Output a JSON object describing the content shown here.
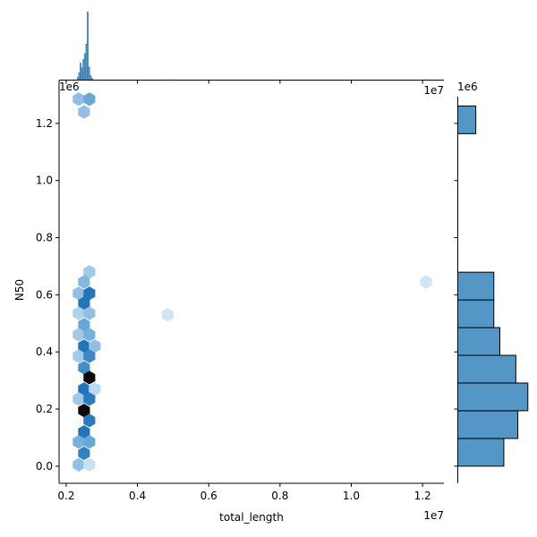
{
  "chart_data": {
    "type": "hexbin-joint",
    "xlabel": "total_length",
    "ylabel": "N50",
    "x_offset_label": "1e7",
    "y_offset_label": "1e6",
    "top_x_offset_label": "1e7",
    "top_x_left_label": "1e6",
    "right_y_offset_label": "1e6",
    "xlim": [
      0.18,
      1.26
    ],
    "ylim": [
      -0.06,
      1.35
    ],
    "x_ticks": [
      0.2,
      0.4,
      0.6,
      0.8,
      1.0,
      1.2
    ],
    "x_tick_labels": [
      "0.2",
      "0.4",
      "0.6",
      "0.8",
      "1.0",
      "1.2"
    ],
    "y_ticks": [
      0.0,
      0.2,
      0.4,
      0.6,
      0.8,
      1.0,
      1.2
    ],
    "y_tick_labels": [
      "0.0",
      "0.2",
      "0.4",
      "0.6",
      "0.8",
      "1.0",
      "1.2"
    ],
    "colors": {
      "hex_light": "#e7f1fa",
      "hex_mid": "#5aa0d5",
      "hex_dark": "#1b6fb5",
      "hex_peak": "#0b0b0b",
      "bar": "#5497c7",
      "bar_stroke": "#000000",
      "spine": "#000000"
    },
    "hexbins": [
      {
        "x": 0.235,
        "y": 1.285,
        "level": 0.3
      },
      {
        "x": 0.265,
        "y": 1.285,
        "level": 0.45
      },
      {
        "x": 0.25,
        "y": 1.24,
        "level": 0.3
      },
      {
        "x": 0.265,
        "y": 0.68,
        "level": 0.25
      },
      {
        "x": 0.25,
        "y": 0.645,
        "level": 0.35
      },
      {
        "x": 0.235,
        "y": 0.605,
        "level": 0.3
      },
      {
        "x": 0.265,
        "y": 0.605,
        "level": 0.85
      },
      {
        "x": 0.25,
        "y": 0.57,
        "level": 0.85
      },
      {
        "x": 0.235,
        "y": 0.535,
        "level": 0.2
      },
      {
        "x": 0.265,
        "y": 0.535,
        "level": 0.3
      },
      {
        "x": 0.25,
        "y": 0.495,
        "level": 0.45
      },
      {
        "x": 0.235,
        "y": 0.46,
        "level": 0.25
      },
      {
        "x": 0.265,
        "y": 0.46,
        "level": 0.4
      },
      {
        "x": 0.25,
        "y": 0.42,
        "level": 0.85
      },
      {
        "x": 0.28,
        "y": 0.42,
        "level": 0.3
      },
      {
        "x": 0.235,
        "y": 0.385,
        "level": 0.25
      },
      {
        "x": 0.265,
        "y": 0.385,
        "level": 0.7
      },
      {
        "x": 0.25,
        "y": 0.345,
        "level": 0.65
      },
      {
        "x": 0.265,
        "y": 0.31,
        "level": 1.0
      },
      {
        "x": 0.25,
        "y": 0.27,
        "level": 0.85
      },
      {
        "x": 0.28,
        "y": 0.27,
        "level": 0.15
      },
      {
        "x": 0.235,
        "y": 0.235,
        "level": 0.25
      },
      {
        "x": 0.265,
        "y": 0.235,
        "level": 0.8
      },
      {
        "x": 0.25,
        "y": 0.195,
        "level": 1.0
      },
      {
        "x": 0.265,
        "y": 0.16,
        "level": 0.8
      },
      {
        "x": 0.25,
        "y": 0.12,
        "level": 0.85
      },
      {
        "x": 0.235,
        "y": 0.085,
        "level": 0.4
      },
      {
        "x": 0.265,
        "y": 0.085,
        "level": 0.45
      },
      {
        "x": 0.25,
        "y": 0.045,
        "level": 0.75
      },
      {
        "x": 0.235,
        "y": 0.005,
        "level": 0.3
      },
      {
        "x": 0.265,
        "y": 0.005,
        "level": 0.1
      },
      {
        "x": 0.485,
        "y": 0.53,
        "level": 0.08
      },
      {
        "x": 1.21,
        "y": 0.645,
        "level": 0.08
      }
    ],
    "right_hist": [
      {
        "y0": 0.0,
        "y1": 0.097,
        "count": 46
      },
      {
        "y0": 0.097,
        "y1": 0.194,
        "count": 60
      },
      {
        "y0": 0.194,
        "y1": 0.291,
        "count": 70
      },
      {
        "y0": 0.291,
        "y1": 0.388,
        "count": 58
      },
      {
        "y0": 0.388,
        "y1": 0.485,
        "count": 42
      },
      {
        "y0": 0.485,
        "y1": 0.582,
        "count": 36
      },
      {
        "y0": 0.582,
        "y1": 0.679,
        "count": 36
      },
      {
        "y0": 1.164,
        "y1": 1.261,
        "count": 18
      }
    ],
    "right_hist_xmax": 72,
    "top_hist": [
      {
        "x0": 0.2305,
        "x1": 0.2345,
        "count": 3
      },
      {
        "x0": 0.2345,
        "x1": 0.2385,
        "count": 8
      },
      {
        "x0": 0.2385,
        "x1": 0.2425,
        "count": 18
      },
      {
        "x0": 0.2425,
        "x1": 0.2465,
        "count": 13
      },
      {
        "x0": 0.2465,
        "x1": 0.2505,
        "count": 22
      },
      {
        "x0": 0.2505,
        "x1": 0.2545,
        "count": 28
      },
      {
        "x0": 0.2545,
        "x1": 0.2585,
        "count": 38
      },
      {
        "x0": 0.2585,
        "x1": 0.2625,
        "count": 72
      },
      {
        "x0": 0.2625,
        "x1": 0.2665,
        "count": 14
      },
      {
        "x0": 0.2665,
        "x1": 0.2705,
        "count": 5
      },
      {
        "x0": 0.2705,
        "x1": 0.2745,
        "count": 2
      },
      {
        "x0": 0.485,
        "x1": 0.489,
        "count": 0.5
      },
      {
        "x0": 1.208,
        "x1": 1.212,
        "count": 0.5
      }
    ],
    "top_hist_ymax": 75
  }
}
